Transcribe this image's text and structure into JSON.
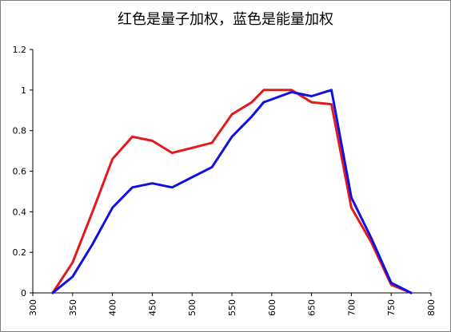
{
  "chart_data": {
    "type": "line",
    "title": "红色是量子加权，蓝色是能量加权",
    "xlabel": "",
    "ylabel": "",
    "xlim": [
      300,
      800
    ],
    "ylim": [
      0,
      1.2
    ],
    "x_ticks": [
      "300",
      "350",
      "400",
      "450",
      "500",
      "550",
      "600",
      "650",
      "700",
      "750",
      "800"
    ],
    "y_ticks": [
      "0",
      "0.2",
      "0.4",
      "0.6",
      "0.8",
      "1",
      "1.2"
    ],
    "grid": false,
    "legend": "none",
    "series": [
      {
        "color": "#e31a1c",
        "points": [
          [
            325,
            0.0
          ],
          [
            350,
            0.15
          ],
          [
            375,
            0.4
          ],
          [
            400,
            0.66
          ],
          [
            425,
            0.77
          ],
          [
            450,
            0.75
          ],
          [
            475,
            0.69
          ],
          [
            500,
            0.715
          ],
          [
            525,
            0.74
          ],
          [
            550,
            0.88
          ],
          [
            575,
            0.94
          ],
          [
            590,
            1.0
          ],
          [
            600,
            1.0
          ],
          [
            625,
            1.0
          ],
          [
            650,
            0.94
          ],
          [
            675,
            0.93
          ],
          [
            700,
            0.42
          ],
          [
            725,
            0.25
          ],
          [
            750,
            0.04
          ],
          [
            775,
            0.0
          ]
        ]
      },
      {
        "color": "#1010e0",
        "points": [
          [
            325,
            0.0
          ],
          [
            350,
            0.08
          ],
          [
            375,
            0.24
          ],
          [
            400,
            0.42
          ],
          [
            425,
            0.52
          ],
          [
            450,
            0.54
          ],
          [
            475,
            0.52
          ],
          [
            500,
            0.57
          ],
          [
            525,
            0.62
          ],
          [
            550,
            0.77
          ],
          [
            575,
            0.87
          ],
          [
            590,
            0.94
          ],
          [
            625,
            0.99
          ],
          [
            650,
            0.97
          ],
          [
            675,
            1.0
          ],
          [
            700,
            0.47
          ],
          [
            725,
            0.27
          ],
          [
            750,
            0.05
          ],
          [
            775,
            0.0
          ]
        ]
      }
    ]
  }
}
